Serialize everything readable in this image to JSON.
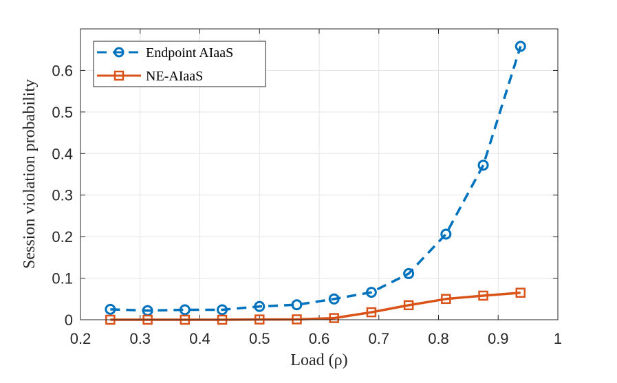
{
  "chart_data": {
    "type": "line",
    "title": "",
    "xlabel": "Load (ρ)",
    "ylabel": "Session violation probability",
    "xlim": [
      0.2,
      1.0
    ],
    "ylim": [
      0,
      0.7
    ],
    "xticks": [
      0.2,
      0.3,
      0.4,
      0.5,
      0.6,
      0.7,
      0.8,
      0.9,
      1.0
    ],
    "xtick_labels": [
      "0.2",
      "0.3",
      "0.4",
      "0.5",
      "0.6",
      "0.7",
      "0.8",
      "0.9",
      "1"
    ],
    "yticks": [
      0,
      0.1,
      0.2,
      0.3,
      0.4,
      0.5,
      0.6
    ],
    "ytick_labels": [
      "0",
      "0.1",
      "0.2",
      "0.3",
      "0.4",
      "0.5",
      "0.6"
    ],
    "grid": true,
    "legend_position": "top-left",
    "x": [
      0.25,
      0.3125,
      0.375,
      0.4375,
      0.5,
      0.5625,
      0.625,
      0.6875,
      0.75,
      0.8125,
      0.875,
      0.9375
    ],
    "series": [
      {
        "name": "Endpoint AIaaS",
        "color": "#0072BD",
        "line_style": "dashed",
        "marker": "circle",
        "values": [
          0.025,
          0.022,
          0.024,
          0.024,
          0.032,
          0.036,
          0.05,
          0.066,
          0.111,
          0.206,
          0.372,
          0.658
        ]
      },
      {
        "name": "NE-AIaaS",
        "color": "#D95319",
        "line_style": "solid",
        "marker": "square",
        "values": [
          0.0,
          0.0,
          0.0,
          0.0,
          0.0006,
          0.0009,
          0.004,
          0.018,
          0.035,
          0.05,
          0.058,
          0.065
        ]
      }
    ]
  }
}
